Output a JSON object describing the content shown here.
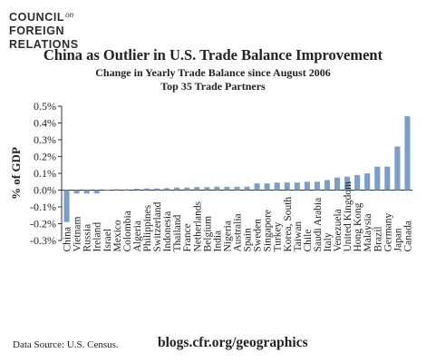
{
  "logo": {
    "line1": "COUNCIL",
    "on": "on",
    "line2": "FOREIGN",
    "line3": "RELATIONS"
  },
  "chart_data": {
    "type": "bar",
    "title": "China as Outlier in U.S. Trade Balance Improvement",
    "subtitle": "Change in Yearly Trade Balance since August 2006",
    "subtitle2": "Top 35 Trade Partners",
    "xlabel": "",
    "ylabel": "% of GDP",
    "ylim": [
      -0.3,
      0.5
    ],
    "yticks": [
      "-0.3%",
      "-0.2%",
      "-0.1%",
      "0.0%",
      "0.1%",
      "0.2%",
      "0.3%",
      "0.4%",
      "0.5%"
    ],
    "grid": false,
    "bar_color": "#7b9fc7",
    "categories": [
      "China",
      "Vietnam",
      "Russia",
      "Ireland",
      "Israel",
      "Mexico",
      "Colombia",
      "Algeria",
      "Philippines",
      "Switzerland",
      "Indonesia",
      "Thailand",
      "France",
      "Netherlands",
      "Belgium",
      "India",
      "Nigeria",
      "Australia",
      "Spain",
      "Sweden",
      "Singapore",
      "Turkey",
      "Korea, South",
      "Taiwan",
      "Chile",
      "Saudi Arabia",
      "Italy",
      "Venezuela",
      "United Kingdom",
      "Hong Kong",
      "Malaysia",
      "Brazil",
      "Germany",
      "Japan",
      "Canada"
    ],
    "values": [
      -0.19,
      -0.02,
      -0.02,
      -0.02,
      0.0,
      0.005,
      0.005,
      0.008,
      0.01,
      0.01,
      0.012,
      0.015,
      0.015,
      0.018,
      0.018,
      0.02,
      0.02,
      0.02,
      0.02,
      0.04,
      0.04,
      0.045,
      0.045,
      0.045,
      0.05,
      0.05,
      0.06,
      0.075,
      0.08,
      0.09,
      0.1,
      0.14,
      0.14,
      0.26,
      0.44
    ]
  },
  "footer": {
    "source": "Data Source: U.S. Census.",
    "site": "blogs.cfr.org/geographics"
  }
}
